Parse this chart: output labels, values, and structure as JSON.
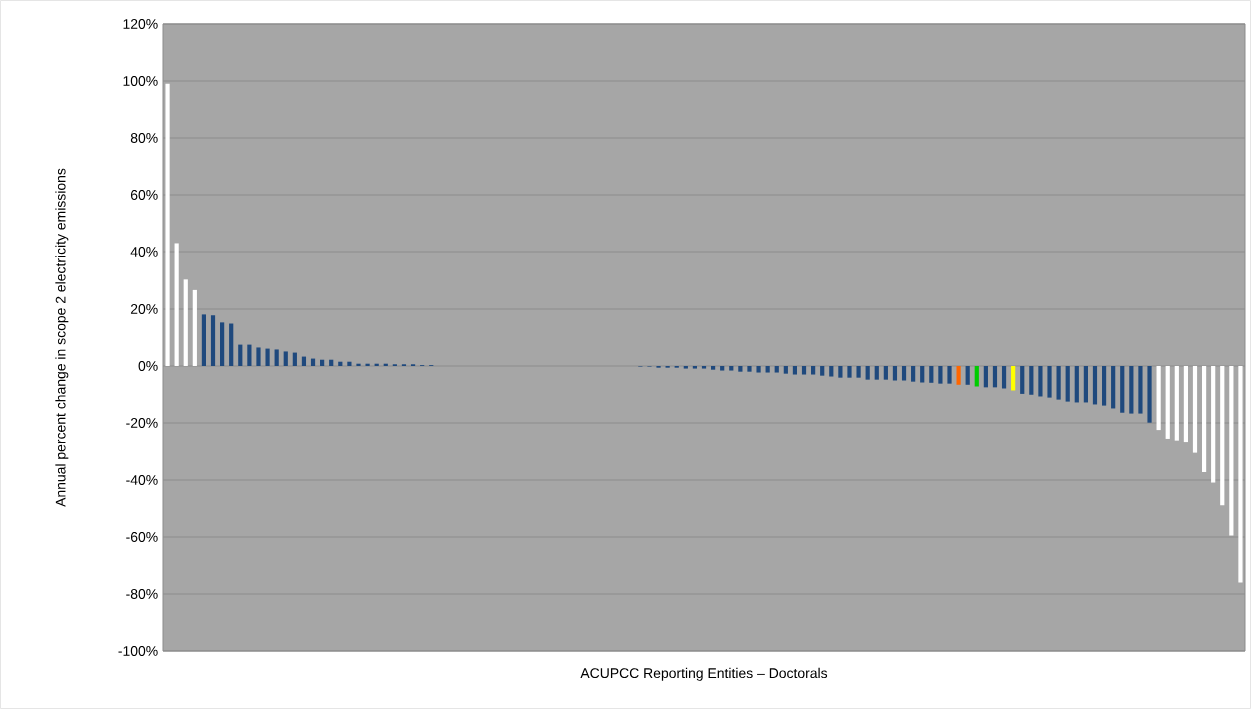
{
  "chart_data": {
    "type": "bar",
    "xlabel": "ACUPCC Reporting Entities – Doctorals",
    "ylabel": "Annual percent change in scope 2 electricity emissions",
    "categories": [
      null,
      null,
      null,
      null,
      null,
      null,
      null,
      null,
      null,
      null,
      null,
      null,
      null,
      null,
      null,
      null,
      null,
      null,
      null,
      null,
      null,
      null,
      null,
      null,
      null,
      null,
      null,
      null,
      null,
      null,
      null,
      null,
      null,
      null,
      null,
      null,
      null,
      null,
      null,
      null,
      null,
      null,
      null,
      null,
      null,
      null,
      null,
      null,
      null,
      null,
      null,
      null,
      null,
      null,
      null,
      null,
      null,
      null,
      null,
      null,
      null,
      null,
      null,
      null,
      null,
      null,
      null,
      null,
      null,
      null,
      null,
      null,
      null,
      null,
      null,
      null,
      null,
      null,
      null,
      null,
      null,
      null,
      null,
      null,
      null,
      null,
      null,
      null,
      null,
      null,
      null,
      null,
      null,
      null,
      null,
      null,
      null,
      null,
      null,
      null,
      null,
      null,
      null,
      null,
      null,
      null,
      null,
      null,
      null,
      null,
      null,
      null,
      null,
      null,
      null,
      null,
      null,
      null,
      null
    ],
    "values": [
      99,
      43,
      30.4,
      26.7,
      18.1,
      17.8,
      15.3,
      14.9,
      7.5,
      7.5,
      6.5,
      6.1,
      5.8,
      5.1,
      4.7,
      3.3,
      2.6,
      2.2,
      2.2,
      1.5,
      1.5,
      0.8,
      0.8,
      0.8,
      0.8,
      0.6,
      0.6,
      0.6,
      0.3,
      0.3,
      0,
      0,
      0,
      0,
      0,
      0,
      0,
      0,
      0,
      0,
      0,
      0,
      0,
      0,
      0,
      0,
      0,
      0,
      0,
      0,
      0,
      0,
      -0.2,
      -0.2,
      -0.6,
      -0.6,
      -0.6,
      -0.9,
      -0.9,
      -0.9,
      -1.3,
      -1.6,
      -1.6,
      -2,
      -2,
      -2.3,
      -2.3,
      -2.3,
      -2.7,
      -3,
      -3,
      -3,
      -3.4,
      -3.7,
      -4.1,
      -4.1,
      -4.1,
      -4.8,
      -4.8,
      -4.8,
      -5.1,
      -5.1,
      -5.5,
      -5.8,
      -5.9,
      -6.2,
      -6.2,
      -6.6,
      -6.6,
      -7.2,
      -7.5,
      -7.5,
      -7.9,
      -8.6,
      -9.8,
      -10.1,
      -10.7,
      -11.1,
      -11.8,
      -12.5,
      -12.8,
      -12.8,
      -13.5,
      -13.9,
      -14.9,
      -16.4,
      -16.7,
      -16.7,
      -19.9,
      -22.5,
      -25.6,
      -26.2,
      -26.7,
      -30.4,
      -37.2,
      -40.9,
      -48.9,
      -59.5,
      -76
    ],
    "colors": [
      "#ffffff",
      "#ffffff",
      "#ffffff",
      "#ffffff",
      "#1f497d",
      "#1f497d",
      "#1f497d",
      "#1f497d",
      "#1f497d",
      "#1f497d",
      "#1f497d",
      "#1f497d",
      "#1f497d",
      "#1f497d",
      "#1f497d",
      "#1f497d",
      "#1f497d",
      "#1f497d",
      "#1f497d",
      "#1f497d",
      "#1f497d",
      "#1f497d",
      "#1f497d",
      "#1f497d",
      "#1f497d",
      "#1f497d",
      "#1f497d",
      "#1f497d",
      "#1f497d",
      "#1f497d",
      "#1f497d",
      "#1f497d",
      "#1f497d",
      "#1f497d",
      "#1f497d",
      "#1f497d",
      "#1f497d",
      "#1f497d",
      "#1f497d",
      "#1f497d",
      "#1f497d",
      "#1f497d",
      "#1f497d",
      "#1f497d",
      "#1f497d",
      "#1f497d",
      "#1f497d",
      "#1f497d",
      "#1f497d",
      "#1f497d",
      "#1f497d",
      "#1f497d",
      "#1f497d",
      "#1f497d",
      "#1f497d",
      "#1f497d",
      "#1f497d",
      "#1f497d",
      "#1f497d",
      "#1f497d",
      "#1f497d",
      "#1f497d",
      "#1f497d",
      "#1f497d",
      "#1f497d",
      "#1f497d",
      "#1f497d",
      "#1f497d",
      "#1f497d",
      "#1f497d",
      "#1f497d",
      "#1f497d",
      "#1f497d",
      "#1f497d",
      "#1f497d",
      "#1f497d",
      "#1f497d",
      "#1f497d",
      "#1f497d",
      "#1f497d",
      "#1f497d",
      "#1f497d",
      "#1f497d",
      "#1f497d",
      "#1f497d",
      "#1f497d",
      "#1f497d",
      "#ff6600",
      "#1f497d",
      "#00cc00",
      "#1f497d",
      "#1f497d",
      "#1f497d",
      "#ffff00",
      "#1f497d",
      "#1f497d",
      "#1f497d",
      "#1f497d",
      "#1f497d",
      "#1f497d",
      "#1f497d",
      "#1f497d",
      "#1f497d",
      "#1f497d",
      "#1f497d",
      "#1f497d",
      "#1f497d",
      "#1f497d",
      "#1f497d",
      "#ffffff",
      "#ffffff",
      "#ffffff",
      "#ffffff",
      "#ffffff",
      "#ffffff",
      "#ffffff",
      "#ffffff",
      "#ffffff",
      "#ffffff"
    ],
    "ylim": [
      -100,
      120
    ],
    "yticks": [
      {
        "value": -100,
        "label": "-100%"
      },
      {
        "value": -80,
        "label": "-80%"
      },
      {
        "value": -60,
        "label": "-60%"
      },
      {
        "value": -40,
        "label": "-40%"
      },
      {
        "value": -20,
        "label": "-20%"
      },
      {
        "value": 0,
        "label": "0%"
      },
      {
        "value": 20,
        "label": "20%"
      },
      {
        "value": 40,
        "label": "40%"
      },
      {
        "value": 60,
        "label": "60%"
      },
      {
        "value": 80,
        "label": "80%"
      },
      {
        "value": 100,
        "label": "100%"
      },
      {
        "value": 120,
        "label": "120%"
      }
    ],
    "grid": "y",
    "tick_labels": "y"
  }
}
